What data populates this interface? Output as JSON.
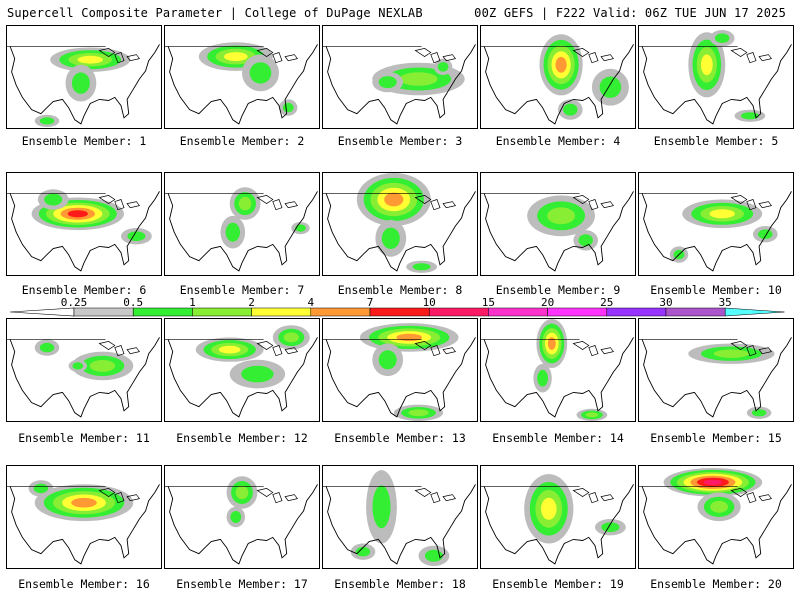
{
  "header": {
    "left": "Supercell Composite Parameter | College of DuPage NEXLAB",
    "right": "00Z GEFS | F222 Valid: 06Z TUE JUN 17 2025"
  },
  "member_label_prefix": "Ensemble Member:",
  "members": [
    {
      "number": "1",
      "blobs": [
        [
          0.54,
          0.33,
          0.26,
          0.12,
          3
        ],
        [
          0.48,
          0.56,
          0.1,
          0.18,
          1
        ],
        [
          0.26,
          0.93,
          0.08,
          0.06,
          1
        ]
      ]
    },
    {
      "number": "2",
      "blobs": [
        [
          0.46,
          0.3,
          0.24,
          0.14,
          3
        ],
        [
          0.62,
          0.46,
          0.12,
          0.18,
          1
        ],
        [
          0.8,
          0.8,
          0.06,
          0.08,
          1
        ]
      ]
    },
    {
      "number": "3",
      "blobs": [
        [
          0.62,
          0.52,
          0.3,
          0.16,
          2
        ],
        [
          0.42,
          0.55,
          0.1,
          0.1,
          1
        ],
        [
          0.78,
          0.4,
          0.06,
          0.08,
          1
        ]
      ]
    },
    {
      "number": "4",
      "blobs": [
        [
          0.52,
          0.38,
          0.14,
          0.3,
          4
        ],
        [
          0.84,
          0.6,
          0.12,
          0.18,
          1
        ],
        [
          0.58,
          0.82,
          0.08,
          0.1,
          1
        ]
      ]
    },
    {
      "number": "5",
      "blobs": [
        [
          0.44,
          0.38,
          0.12,
          0.32,
          3
        ],
        [
          0.54,
          0.12,
          0.08,
          0.08,
          1
        ],
        [
          0.72,
          0.88,
          0.1,
          0.06,
          1
        ]
      ]
    },
    {
      "number": "6",
      "blobs": [
        [
          0.46,
          0.4,
          0.3,
          0.16,
          5
        ],
        [
          0.3,
          0.26,
          0.1,
          0.1,
          1
        ],
        [
          0.84,
          0.62,
          0.1,
          0.08,
          1
        ]
      ]
    },
    {
      "number": "7",
      "blobs": [
        [
          0.52,
          0.3,
          0.1,
          0.16,
          2
        ],
        [
          0.44,
          0.58,
          0.08,
          0.16,
          1
        ],
        [
          0.88,
          0.54,
          0.06,
          0.06,
          1
        ]
      ]
    },
    {
      "number": "8",
      "blobs": [
        [
          0.46,
          0.26,
          0.24,
          0.26,
          4
        ],
        [
          0.44,
          0.64,
          0.1,
          0.18,
          1
        ],
        [
          0.64,
          0.92,
          0.1,
          0.06,
          1
        ]
      ]
    },
    {
      "number": "9",
      "blobs": [
        [
          0.52,
          0.42,
          0.22,
          0.2,
          2
        ],
        [
          0.68,
          0.66,
          0.08,
          0.1,
          1
        ]
      ]
    },
    {
      "number": "10",
      "blobs": [
        [
          0.54,
          0.4,
          0.26,
          0.14,
          3
        ],
        [
          0.82,
          0.6,
          0.08,
          0.08,
          1
        ],
        [
          0.26,
          0.8,
          0.06,
          0.08,
          1
        ]
      ]
    },
    {
      "number": "11",
      "blobs": [
        [
          0.62,
          0.46,
          0.2,
          0.14,
          2
        ],
        [
          0.26,
          0.28,
          0.08,
          0.08,
          1
        ],
        [
          0.46,
          0.46,
          0.06,
          0.06,
          1
        ]
      ]
    },
    {
      "number": "12",
      "blobs": [
        [
          0.42,
          0.3,
          0.22,
          0.12,
          3
        ],
        [
          0.82,
          0.18,
          0.12,
          0.12,
          2
        ],
        [
          0.6,
          0.54,
          0.18,
          0.14,
          1
        ]
      ]
    },
    {
      "number": "13",
      "blobs": [
        [
          0.56,
          0.18,
          0.32,
          0.14,
          4
        ],
        [
          0.42,
          0.4,
          0.1,
          0.16,
          1
        ],
        [
          0.62,
          0.92,
          0.16,
          0.08,
          2
        ]
      ]
    },
    {
      "number": "14",
      "blobs": [
        [
          0.46,
          0.24,
          0.1,
          0.24,
          4
        ],
        [
          0.4,
          0.58,
          0.06,
          0.14,
          1
        ],
        [
          0.72,
          0.94,
          0.1,
          0.06,
          2
        ]
      ]
    },
    {
      "number": "15",
      "blobs": [
        [
          0.6,
          0.34,
          0.28,
          0.1,
          2
        ],
        [
          0.78,
          0.92,
          0.08,
          0.06,
          1
        ]
      ]
    },
    {
      "number": "16",
      "blobs": [
        [
          0.5,
          0.36,
          0.32,
          0.18,
          4
        ],
        [
          0.22,
          0.22,
          0.08,
          0.08,
          1
        ]
      ]
    },
    {
      "number": "17",
      "blobs": [
        [
          0.5,
          0.26,
          0.1,
          0.16,
          2
        ],
        [
          0.46,
          0.5,
          0.06,
          0.1,
          1
        ]
      ]
    },
    {
      "number": "18",
      "blobs": [
        [
          0.38,
          0.4,
          0.1,
          0.36,
          1
        ],
        [
          0.26,
          0.84,
          0.08,
          0.08,
          1
        ],
        [
          0.72,
          0.88,
          0.1,
          0.1,
          1
        ]
      ]
    },
    {
      "number": "19",
      "blobs": [
        [
          0.44,
          0.42,
          0.16,
          0.34,
          3
        ],
        [
          0.84,
          0.6,
          0.1,
          0.08,
          1
        ]
      ]
    },
    {
      "number": "20",
      "blobs": [
        [
          0.48,
          0.16,
          0.32,
          0.14,
          6
        ],
        [
          0.52,
          0.4,
          0.14,
          0.14,
          2
        ]
      ]
    }
  ],
  "colorbar": {
    "labels": [
      "0.25",
      "0.5",
      "1",
      "2",
      "4",
      "7",
      "10",
      "15",
      "20",
      "25",
      "30",
      "35"
    ],
    "colors": [
      "#c8c8c8",
      "#33ee33",
      "#88ee33",
      "#ffff33",
      "#ff9933",
      "#ff1a1a",
      "#ff1a66",
      "#ff33cc",
      "#ff33ff",
      "#9933ff",
      "#aa55cc",
      "#55ffff"
    ]
  },
  "colors": {
    "shade_gray": "#bcbcbc",
    "coast": "#000000"
  }
}
